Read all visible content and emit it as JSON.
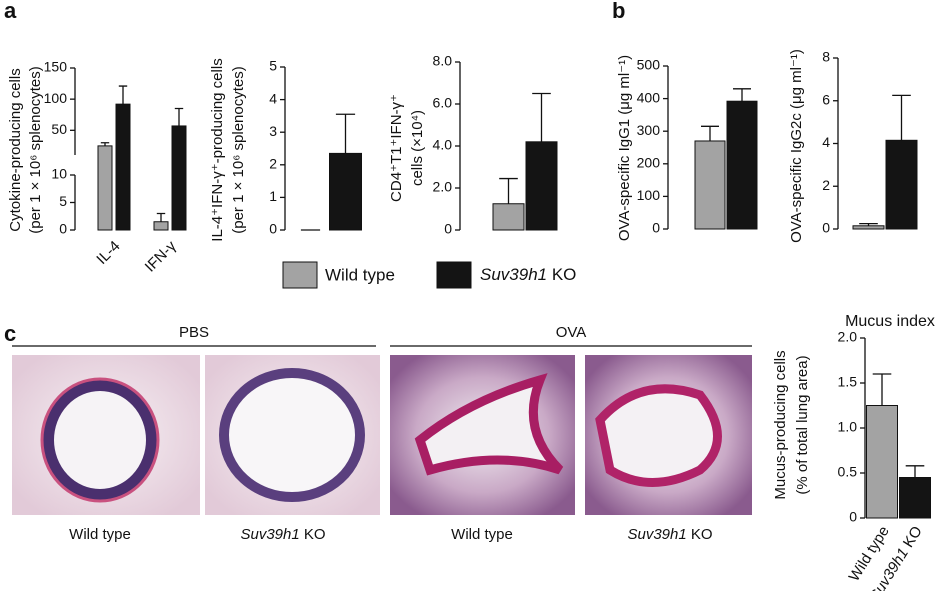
{
  "panel_labels": [
    "a",
    "b",
    "c"
  ],
  "legend": [
    {
      "name": "Wild type",
      "color": "#a3a3a3"
    },
    {
      "name": "Suv39h1 KO",
      "color": "#141414"
    }
  ],
  "histology": {
    "groups": [
      {
        "title": "PBS",
        "images": [
          "Wild type",
          "Suv39h1 KO"
        ]
      },
      {
        "title": "OVA",
        "images": [
          "Wild type",
          "Suv39h1 KO"
        ]
      }
    ]
  },
  "chart_data": [
    {
      "type": "bar",
      "ylabel": [
        "Cytokine-producing cells",
        "(per 1 × 10⁶ splenocytes)"
      ],
      "categories": [
        "IL-4",
        "IFN-γ"
      ],
      "ylim": [
        0,
        150
      ],
      "ybreak": [
        10,
        20
      ],
      "yticks": [
        0,
        5,
        10,
        50,
        100,
        150
      ],
      "series": [
        {
          "color": "#a3a3a3",
          "values": [
            25,
            1.5
          ],
          "errors": [
            5,
            1.5
          ]
        },
        {
          "color": "#141414",
          "values": [
            92,
            57
          ],
          "errors": [
            29,
            28
          ]
        }
      ]
    },
    {
      "type": "bar",
      "ylabel": [
        "IL-4⁺IFN-γ⁺-producing cells",
        "(per 1 × 10⁶ splenocytes)"
      ],
      "categories": [
        null
      ],
      "ylim": [
        0,
        5
      ],
      "yticks": [
        0,
        1,
        2,
        3,
        4,
        5
      ],
      "series": [
        {
          "color": "#a3a3a3",
          "values": [
            0
          ],
          "errors": [
            0
          ]
        },
        {
          "color": "#141414",
          "values": [
            2.35
          ],
          "errors": [
            1.2
          ]
        }
      ]
    },
    {
      "type": "bar",
      "ylabel": [
        "CD4⁺T1⁺IFN-γ⁺",
        "cells (×10⁴)"
      ],
      "categories": [
        null
      ],
      "ylim": [
        0,
        8
      ],
      "yticks": [
        0,
        {
          "value": 2,
          "label": "2.0"
        },
        {
          "value": 4,
          "label": "4.0"
        },
        {
          "value": 6,
          "label": "6.0"
        },
        {
          "value": 8,
          "label": "8.0"
        }
      ],
      "series": [
        {
          "color": "#a3a3a3",
          "values": [
            1.25
          ],
          "errors": [
            1.2
          ]
        },
        {
          "color": "#141414",
          "values": [
            4.2
          ],
          "errors": [
            2.3
          ]
        }
      ]
    },
    {
      "type": "bar",
      "ylabel": [
        "OVA-specific IgG1 (μg ml⁻¹)"
      ],
      "categories": [
        null
      ],
      "ylim": [
        0,
        500
      ],
      "yticks": [
        0,
        100,
        200,
        300,
        400,
        500
      ],
      "series": [
        {
          "color": "#a3a3a3",
          "values": [
            270
          ],
          "errors": [
            45
          ]
        },
        {
          "color": "#141414",
          "values": [
            392
          ],
          "errors": [
            38
          ]
        }
      ]
    },
    {
      "type": "bar",
      "ylabel": [
        "OVA-specific IgG2c (μg ml⁻¹)"
      ],
      "categories": [
        null
      ],
      "ylim": [
        0,
        8
      ],
      "yticks": [
        0,
        2,
        4,
        6,
        8
      ],
      "series": [
        {
          "color": "#a3a3a3",
          "values": [
            0.15
          ],
          "errors": [
            0.1
          ]
        },
        {
          "color": "#141414",
          "values": [
            4.15
          ],
          "errors": [
            2.1
          ]
        }
      ]
    },
    {
      "type": "bar",
      "title": "Mucus index",
      "ylabel": [
        "Mucus-producing cells",
        "(% of total lung area)"
      ],
      "categories": [
        "Wild type",
        "Suv39h1 KO"
      ],
      "ylim": [
        0,
        2
      ],
      "yticks": [
        0,
        0.5,
        {
          "value": 1,
          "label": "1.0"
        },
        1.5,
        {
          "value": 2,
          "label": "2.0"
        }
      ],
      "series": [
        {
          "colors": [
            "#a3a3a3",
            "#141414"
          ],
          "values": [
            1.25,
            0.45
          ],
          "errors": [
            0.35,
            0.13
          ]
        }
      ]
    }
  ]
}
